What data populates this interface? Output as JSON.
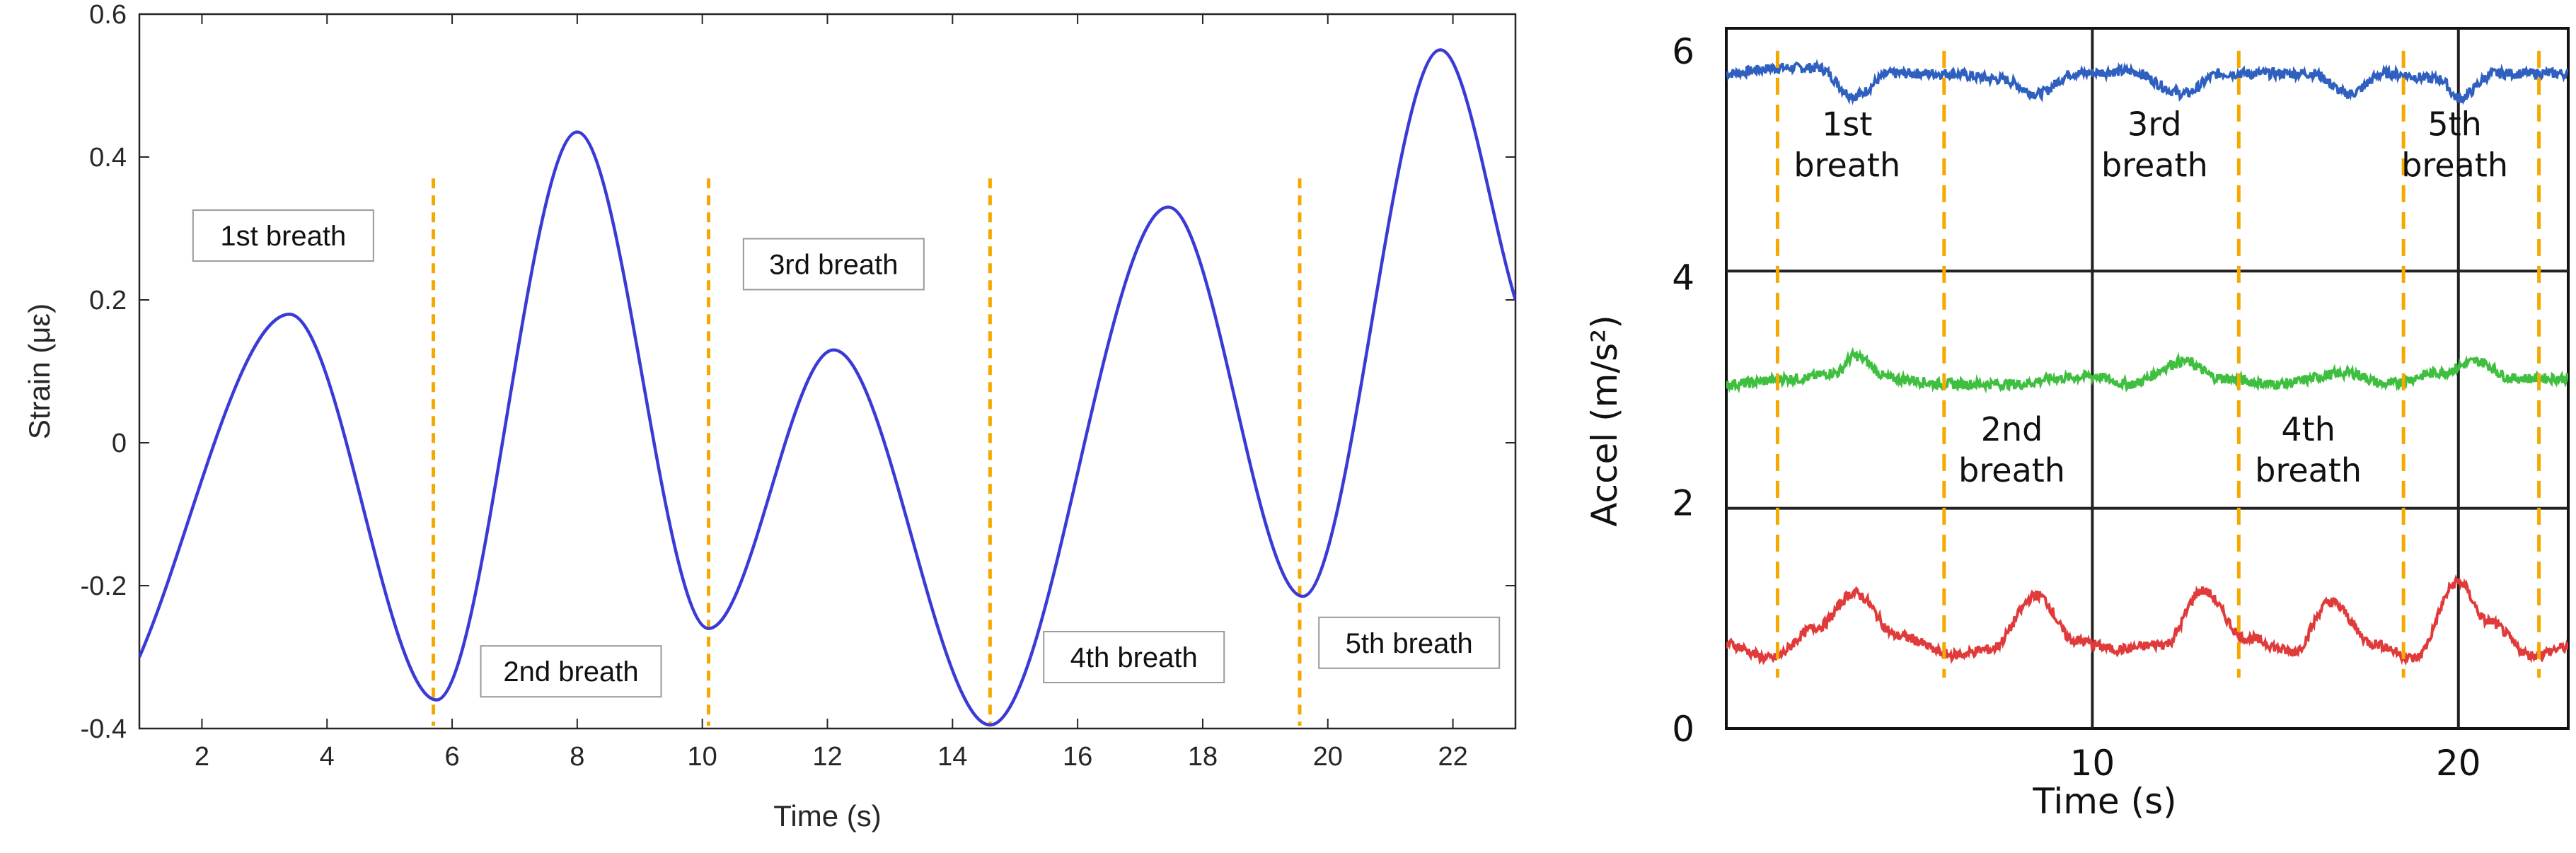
{
  "chart_data": [
    {
      "type": "line",
      "xlabel": "Time (s)",
      "ylabel": "Strain (με)",
      "xlim": [
        1,
        23
      ],
      "ylim": [
        -0.4,
        0.6
      ],
      "xticks": [
        2,
        4,
        6,
        8,
        10,
        12,
        14,
        16,
        18,
        20,
        22
      ],
      "yticks": [
        -0.4,
        -0.2,
        0,
        0.2,
        0.4,
        0.6
      ],
      "xtick_labels": [
        "2",
        "4",
        "6",
        "8",
        "10",
        "12",
        "14",
        "16",
        "18",
        "20",
        "22"
      ],
      "ytick_labels": [
        "-0.4",
        "-0.2",
        "0",
        "0.2",
        "0.4",
        "0.6"
      ],
      "grid": false,
      "series": [
        {
          "color": "#3a3ad6",
          "x": [
            1.0,
            3.4,
            5.75,
            8.0,
            10.1,
            12.1,
            14.6,
            17.45,
            19.6,
            21.8,
            23.0
          ],
          "y": [
            -0.3,
            0.18,
            -0.36,
            0.435,
            -0.26,
            0.13,
            -0.395,
            0.33,
            -0.215,
            0.55,
            0.2
          ]
        }
      ],
      "breath_dividers": [
        5.7,
        10.1,
        14.6,
        19.55
      ],
      "annotations": [
        {
          "text": "1st breath",
          "x": 3.3,
          "y": 0.29
        },
        {
          "text": "2nd breath",
          "x": 7.9,
          "y": -0.32
        },
        {
          "text": "3rd breath",
          "x": 12.1,
          "y": 0.25
        },
        {
          "text": "4th breath",
          "x": 16.9,
          "y": -0.3
        },
        {
          "text": "5th breath",
          "x": 21.3,
          "y": -0.28
        }
      ],
      "divider_color": "#f5a800"
    },
    {
      "type": "line",
      "xlabel": "Time (s)",
      "ylabel": "Accel (m/s²)",
      "xlim": [
        0,
        23
      ],
      "ylim": [
        0,
        6.2
      ],
      "xticks": [
        10,
        20
      ],
      "yticks": [
        0,
        2,
        4,
        6
      ],
      "xtick_labels": [
        "10",
        "20"
      ],
      "ytick_labels": [
        "0",
        "2",
        "4",
        "6"
      ],
      "horizontal_lines": [
        1.95,
        4.05
      ],
      "vertical_lines": [
        10,
        20
      ],
      "series": [
        {
          "color": "#2f5fbf",
          "x": [
            0,
            1.5,
            2.5,
            3.5,
            4.5,
            6,
            7.5,
            8.5,
            9.5,
            11,
            12.5,
            13.5,
            14.5,
            16,
            17,
            18,
            19.5,
            20,
            21,
            23
          ],
          "y": [
            5.8,
            5.85,
            5.85,
            5.6,
            5.8,
            5.8,
            5.75,
            5.62,
            5.8,
            5.82,
            5.62,
            5.8,
            5.8,
            5.8,
            5.62,
            5.8,
            5.75,
            5.58,
            5.8,
            5.8
          ]
        },
        {
          "color": "#3fbf3f",
          "x": [
            0,
            2,
            3,
            3.5,
            4.5,
            6,
            8,
            9,
            10,
            11,
            12.5,
            13.5,
            15,
            17,
            18,
            19.5,
            20.5,
            21.5,
            23
          ],
          "y": [
            3.05,
            3.1,
            3.15,
            3.3,
            3.1,
            3.05,
            3.05,
            3.1,
            3.12,
            3.05,
            3.25,
            3.1,
            3.05,
            3.15,
            3.05,
            3.15,
            3.25,
            3.1,
            3.1
          ]
        },
        {
          "color": "#e03a3a",
          "x": [
            0,
            1.2,
            2.5,
            3.5,
            4.7,
            6.2,
            7.2,
            8.5,
            9.5,
            10.7,
            12.0,
            13.0,
            14.2,
            15.5,
            16.5,
            17.7,
            18.8,
            20.0,
            20.8,
            22.0,
            23.0
          ],
          "y": [
            0.75,
            0.62,
            0.9,
            1.2,
            0.82,
            0.65,
            0.7,
            1.18,
            0.78,
            0.7,
            0.75,
            1.22,
            0.8,
            0.68,
            1.12,
            0.75,
            0.62,
            1.3,
            0.95,
            0.65,
            0.72
          ]
        }
      ],
      "breath_dividers": [
        1.4,
        5.95,
        14.0,
        18.5,
        22.2
      ],
      "annotations": [
        {
          "text": "1st\nbreath",
          "x": 3.3,
          "y": 5.25
        },
        {
          "text": "3rd\nbreath",
          "x": 11.7,
          "y": 5.25
        },
        {
          "text": "5th\nbreath",
          "x": 19.9,
          "y": 5.25
        },
        {
          "text": "2nd\nbreath",
          "x": 7.8,
          "y": 2.55
        },
        {
          "text": "4th\nbreath",
          "x": 15.9,
          "y": 2.55
        }
      ],
      "divider_color": "#f5a800"
    }
  ]
}
